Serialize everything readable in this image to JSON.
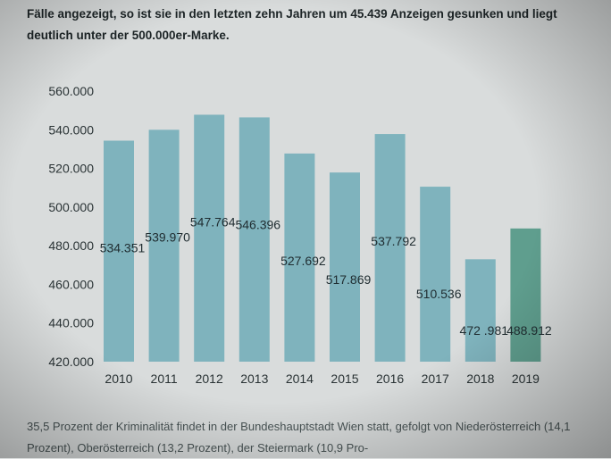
{
  "intro_text": "Fälle angezeigt, so ist sie in den letzten zehn Jahren um 45.439 Anzeigen gesunken und liegt deutlich unter der 500.000er-Marke.",
  "chart_data": {
    "type": "bar",
    "categories": [
      "2010",
      "2011",
      "2012",
      "2013",
      "2014",
      "2015",
      "2016",
      "2017",
      "2018",
      "2019"
    ],
    "values": [
      534351,
      539970,
      547764,
      546396,
      527692,
      517869,
      537792,
      510536,
      472981,
      488912
    ],
    "value_labels": [
      "534.351",
      "539.970",
      "547.764",
      "546.396",
      "527.692",
      "517.869",
      "537.792",
      "510.536",
      "472 .981",
      "488.912"
    ],
    "ylim": [
      420000,
      560000
    ],
    "yticks": [
      "420.000",
      "440.000",
      "460.000",
      "480.000",
      "500.000",
      "520.000",
      "540.000",
      "560.000"
    ],
    "colors": {
      "bar": "#7fb3bd",
      "highlight": "#5f9e8e"
    },
    "highlight_index": 9,
    "grid": false
  },
  "footer_text": "35,5 Prozent der Kriminalität findet in der Bundeshauptstadt Wien statt, gefolgt von Niederösterreich (14,1 Prozent), Oberösterreich (13,2 Prozent), der Steiermark (10,9 Pro-"
}
